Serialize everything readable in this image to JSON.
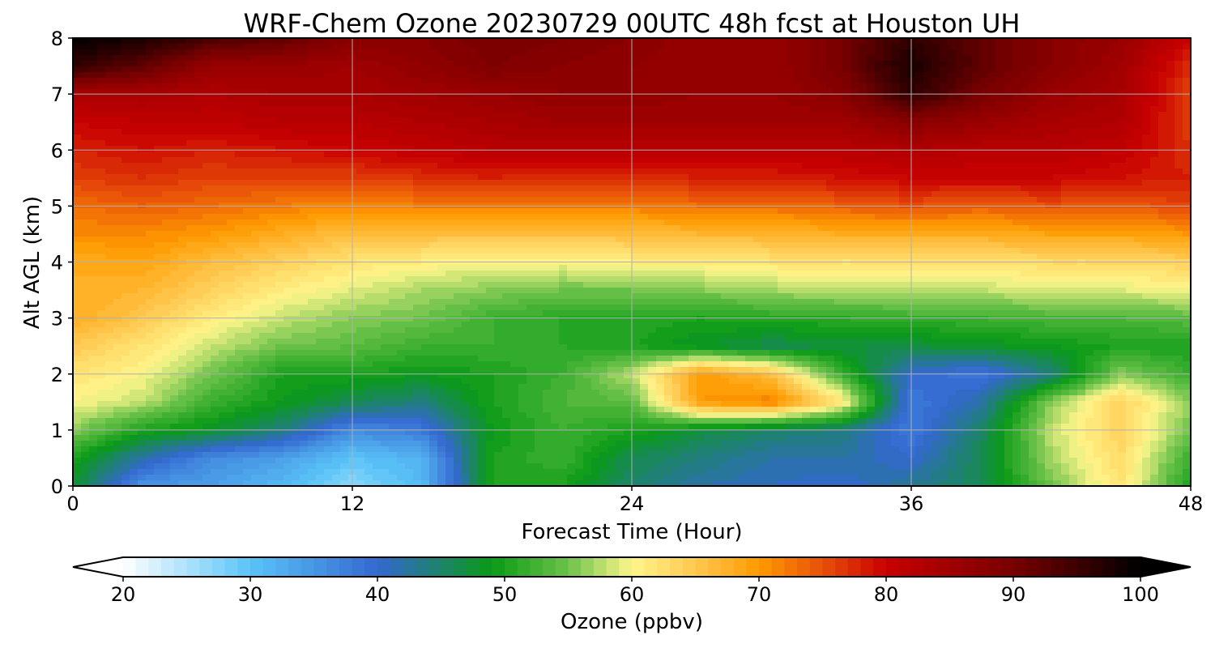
{
  "chart_data": {
    "type": "heatmap",
    "title": "WRF-Chem Ozone  20230729 00UTC 48h fcst at Houston UH",
    "xlabel": "Forecast Time (Hour)",
    "ylabel": "Alt AGL (km)",
    "xlim": [
      0,
      48
    ],
    "ylim": [
      0,
      8
    ],
    "x_ticks": [
      0,
      12,
      24,
      36,
      48
    ],
    "y_ticks": [
      0,
      1,
      2,
      3,
      4,
      5,
      6,
      7,
      8
    ],
    "grid": true,
    "x": [
      0,
      3,
      6,
      9,
      12,
      15,
      18,
      21,
      24,
      27,
      30,
      33,
      36,
      39,
      42,
      45,
      48
    ],
    "y": [
      0,
      0.5,
      1,
      1.5,
      2,
      2.5,
      3,
      3.5,
      4,
      4.5,
      5,
      5.5,
      6,
      6.5,
      7,
      7.5,
      8
    ],
    "z": [
      [
        48,
        35,
        34,
        31,
        27,
        31,
        50,
        50,
        45,
        42,
        41,
        40,
        43,
        46,
        55,
        62,
        50
      ],
      [
        50,
        42,
        36,
        34,
        30,
        32,
        50,
        52,
        46,
        44,
        42,
        42,
        40,
        46,
        57,
        63,
        52
      ],
      [
        56,
        50,
        48,
        44,
        36,
        38,
        49,
        52,
        50,
        47,
        45,
        44,
        38,
        45,
        58,
        64,
        55
      ],
      [
        60,
        58,
        52,
        49,
        46,
        44,
        50,
        53,
        54,
        70,
        72,
        62,
        38,
        42,
        56,
        64,
        56
      ],
      [
        62,
        60,
        55,
        50,
        50,
        49,
        50,
        52,
        58,
        70,
        66,
        52,
        40,
        38,
        44,
        56,
        52
      ],
      [
        65,
        62,
        58,
        55,
        54,
        52,
        52,
        51,
        50,
        48,
        46,
        47,
        47,
        48,
        49,
        50,
        50
      ],
      [
        68,
        65,
        61,
        58,
        56,
        55,
        52,
        51,
        51,
        50,
        51,
        51,
        52,
        52,
        53,
        53,
        54
      ],
      [
        68,
        67,
        64,
        61,
        59,
        57,
        56,
        55,
        55,
        56,
        57,
        58,
        58,
        58,
        59,
        59,
        60
      ],
      [
        68,
        69,
        66,
        64,
        62,
        61,
        60,
        60,
        61,
        61,
        62,
        62,
        62,
        62,
        63,
        63,
        64
      ],
      [
        71,
        71,
        70,
        68,
        66,
        66,
        66,
        66,
        66,
        67,
        67,
        68,
        68,
        68,
        69,
        69,
        70
      ],
      [
        73,
        74,
        73,
        72,
        71,
        72,
        72,
        72,
        72,
        73,
        73,
        74,
        75,
        74,
        75,
        74,
        76
      ],
      [
        76,
        77,
        76,
        76,
        76,
        77,
        78,
        77,
        77,
        78,
        78,
        79,
        80,
        80,
        80,
        79,
        78
      ],
      [
        78,
        79,
        78,
        79,
        80,
        81,
        82,
        82,
        82,
        82,
        82,
        82,
        83,
        82,
        82,
        81,
        77
      ],
      [
        80,
        81,
        81,
        82,
        82,
        83,
        84,
        85,
        85,
        85,
        85,
        85,
        88,
        86,
        84,
        83,
        76
      ],
      [
        84,
        84,
        83,
        84,
        84,
        85,
        86,
        87,
        87,
        86,
        86,
        88,
        96,
        90,
        86,
        84,
        76
      ],
      [
        96,
        92,
        86,
        86,
        85,
        87,
        89,
        88,
        87,
        86,
        86,
        90,
        98,
        92,
        88,
        85,
        77
      ],
      [
        100,
        98,
        94,
        92,
        88,
        88,
        90,
        89,
        88,
        86,
        86,
        90,
        96,
        92,
        88,
        86,
        80
      ]
    ],
    "colorbar": {
      "label": "Ozone  (ppbv)",
      "min": 20,
      "max": 100,
      "ticks": [
        20,
        30,
        40,
        50,
        60,
        70,
        80,
        90,
        100
      ],
      "extend": "both",
      "colors": [
        {
          "v": 20,
          "c": "#ffffff"
        },
        {
          "v": 30,
          "c": "#5ac4f8"
        },
        {
          "v": 40,
          "c": "#3468d0"
        },
        {
          "v": 49,
          "c": "#0a9a16"
        },
        {
          "v": 55,
          "c": "#6cc24a"
        },
        {
          "v": 60,
          "c": "#fff68c"
        },
        {
          "v": 65,
          "c": "#ffc850"
        },
        {
          "v": 70,
          "c": "#ff9a00"
        },
        {
          "v": 75,
          "c": "#e8500a"
        },
        {
          "v": 80,
          "c": "#c80000"
        },
        {
          "v": 90,
          "c": "#780000"
        },
        {
          "v": 100,
          "c": "#000000"
        }
      ],
      "under_color": "#ffffff",
      "over_color": "#000000"
    }
  }
}
